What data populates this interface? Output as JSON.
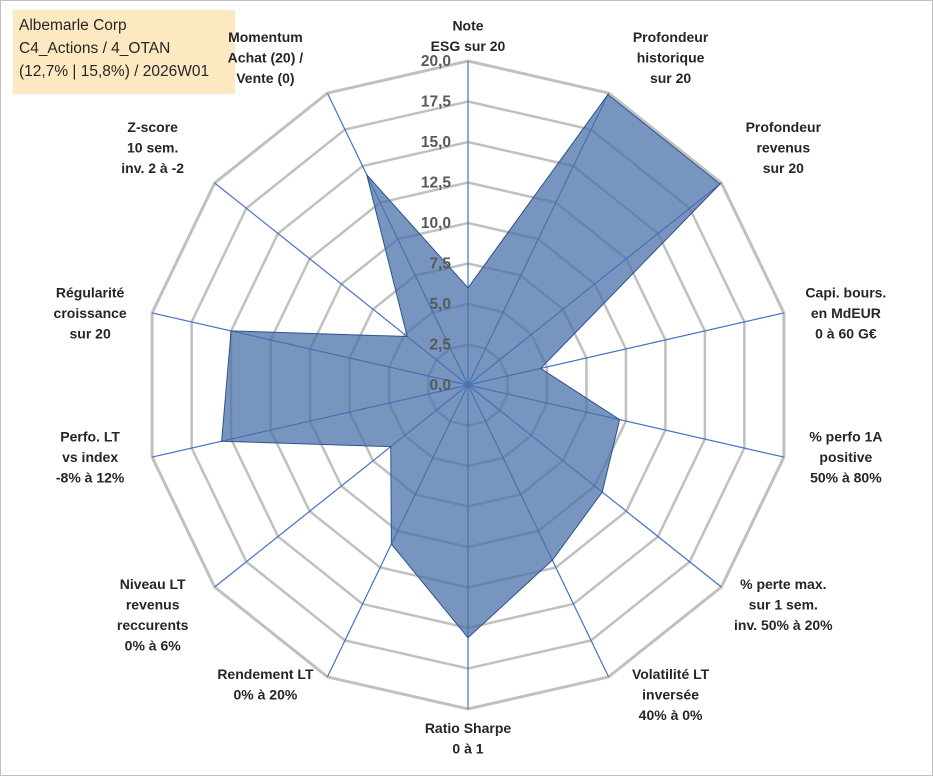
{
  "info": {
    "line1": "Albemarle Corp",
    "line2": "C4_Actions / 4_OTAN",
    "line3": "(12,7% | 15,8%) / 2026W01"
  },
  "colors": {
    "grid": "#c0c0c0",
    "spoke": "#4472c4",
    "fill": "#4a72a9",
    "outline": "#2f528f",
    "info_bg": "#fde9c1"
  },
  "chart_data": {
    "type": "radar",
    "title": "",
    "rmin": 0,
    "rmax": 20,
    "tick_labels": [
      "0,0",
      "2,5",
      "5,0",
      "7,5",
      "10,0",
      "12,5",
      "15,0",
      "17,5",
      "20,0"
    ],
    "categories": [
      [
        "Note",
        "ESG sur 20"
      ],
      [
        "Profondeur",
        "historique",
        "sur 20"
      ],
      [
        "Profondeur",
        "revenus",
        "sur 20"
      ],
      [
        "Capi. bours.",
        "en MdEUR",
        "0 à 60 G€"
      ],
      [
        "% perfo 1A",
        "positive",
        "50% à 80%"
      ],
      [
        "% perte max.",
        "sur 1 sem.",
        "inv. 50% à 20%"
      ],
      [
        "Volatilité LT",
        "inversée",
        "40% à 0%"
      ],
      [
        "Ratio Sharpe",
        "0 à 1"
      ],
      [
        "Rendement LT",
        "0% à 20%"
      ],
      [
        "Niveau LT",
        "revenus",
        "reccurents",
        "0% à 6%"
      ],
      [
        "Perfo. LT",
        "vs index",
        "-8% à 12%"
      ],
      [
        "Régularité",
        "croissance",
        "sur 20"
      ],
      [
        "Z-score",
        "10 sem.",
        "inv. 2 à -2"
      ],
      [
        "Momentum",
        "Achat (20) /",
        "Vente (0)"
      ]
    ],
    "series": [
      {
        "name": "Albemarle Corp",
        "values": [
          6.0,
          19.9,
          19.9,
          4.6,
          9.6,
          10.6,
          12.0,
          15.6,
          10.9,
          6.1,
          15.6,
          15.0,
          4.8,
          14.4
        ]
      }
    ]
  }
}
